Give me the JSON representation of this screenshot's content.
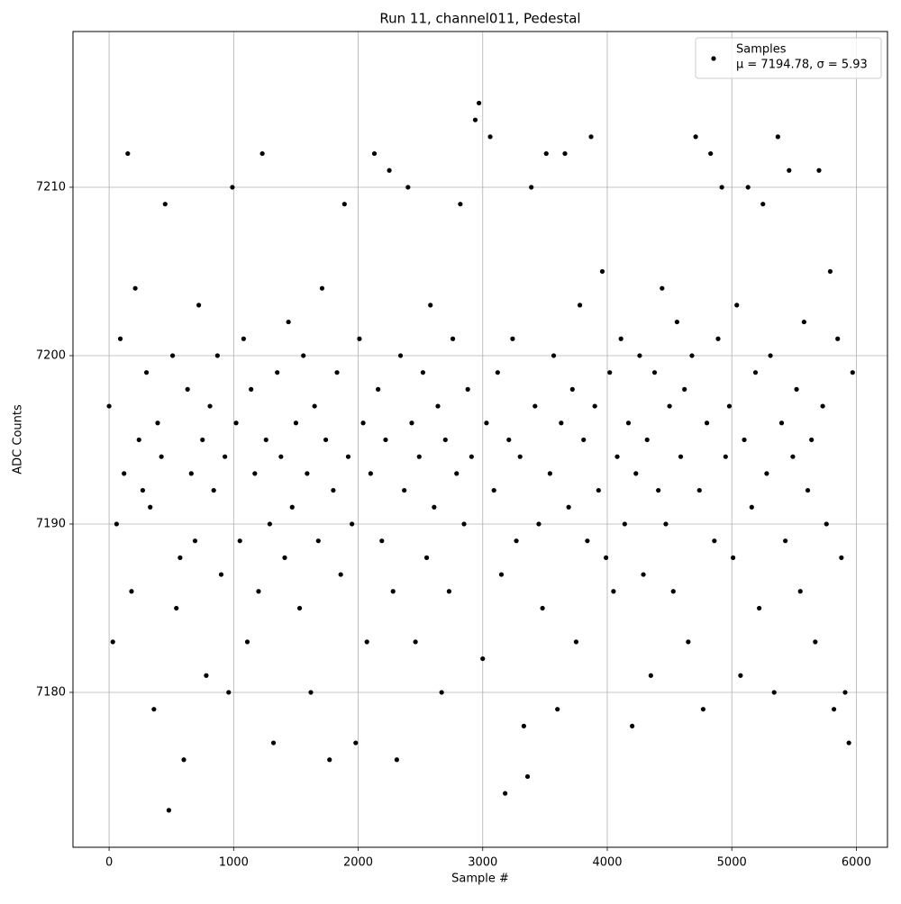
{
  "chart_data": {
    "type": "scatter",
    "title": "Run 11, channel011, Pedestal",
    "x_label": "Sample #",
    "y_label": "ADC Counts",
    "xlim": [
      -290,
      6250
    ],
    "ylim": [
      7170.8,
      7219.25
    ],
    "xticks": [
      0,
      1000,
      2000,
      3000,
      4000,
      5000,
      6000
    ],
    "yticks": [
      7180,
      7190,
      7200,
      7210
    ],
    "grid": true,
    "legend_position": "upper right",
    "legend_note": "μ = 7194.78, σ = 5.93",
    "series": [
      {
        "name": "Samples",
        "color": "#000000",
        "x": [
          0,
          30,
          60,
          90,
          120,
          150,
          180,
          210,
          240,
          270,
          300,
          330,
          360,
          390,
          420,
          450,
          480,
          510,
          540,
          570,
          600,
          630,
          660,
          690,
          720,
          750,
          780,
          810,
          840,
          870,
          900,
          930,
          960,
          990,
          1020,
          1050,
          1080,
          1110,
          1140,
          1170,
          1200,
          1230,
          1260,
          1290,
          1320,
          1350,
          1380,
          1410,
          1440,
          1470,
          1500,
          1530,
          1560,
          1590,
          1620,
          1650,
          1680,
          1710,
          1740,
          1770,
          1800,
          1830,
          1860,
          1890,
          1920,
          1950,
          1980,
          2010,
          2040,
          2070,
          2100,
          2130,
          2160,
          2190,
          2220,
          2250,
          2280,
          2310,
          2340,
          2370,
          2400,
          2430,
          2460,
          2490,
          2520,
          2550,
          2580,
          2610,
          2640,
          2670,
          2700,
          2730,
          2760,
          2790,
          2820,
          2850,
          2880,
          2910,
          2940,
          2970,
          3000,
          3030,
          3060,
          3090,
          3120,
          3150,
          3180,
          3210,
          3240,
          3270,
          3300,
          3330,
          3360,
          3390,
          3420,
          3450,
          3480,
          3510,
          3540,
          3570,
          3600,
          3630,
          3660,
          3690,
          3720,
          3750,
          3780,
          3810,
          3840,
          3870,
          3900,
          3930,
          3960,
          3990,
          4020,
          4050,
          4080,
          4110,
          4140,
          4170,
          4200,
          4230,
          4260,
          4290,
          4320,
          4350,
          4380,
          4410,
          4440,
          4470,
          4500,
          4530,
          4560,
          4590,
          4620,
          4650,
          4680,
          4710,
          4740,
          4770,
          4800,
          4830,
          4860,
          4890,
          4920,
          4950,
          4980,
          5010,
          5040,
          5070,
          5100,
          5130,
          5160,
          5190,
          5220,
          5250,
          5280,
          5310,
          5340,
          5370,
          5400,
          5430,
          5460,
          5490,
          5520,
          5550,
          5580,
          5610,
          5640,
          5670,
          5700,
          5730,
          5760,
          5790,
          5820,
          5850,
          5880,
          5910,
          5940,
          5970
        ],
        "values": [
          7197,
          7183,
          7190,
          7201,
          7193,
          7212,
          7186,
          7204,
          7195,
          7192,
          7199,
          7191,
          7179,
          7196,
          7194,
          7209,
          7173,
          7200,
          7185,
          7188,
          7176,
          7198,
          7193,
          7189,
          7203,
          7195,
          7181,
          7197,
          7192,
          7200,
          7187,
          7194,
          7180,
          7210,
          7196,
          7189,
          7201,
          7183,
          7198,
          7193,
          7186,
          7212,
          7195,
          7190,
          7177,
          7199,
          7194,
          7188,
          7202,
          7191,
          7196,
          7185,
          7200,
          7193,
          7180,
          7197,
          7189,
          7204,
          7195,
          7176,
          7192,
          7199,
          7187,
          7209,
          7194,
          7190,
          7177,
          7201,
          7196,
          7183,
          7193,
          7212,
          7198,
          7189,
          7195,
          7211,
          7186,
          7176,
          7200,
          7192,
          7210,
          7196,
          7183,
          7194,
          7199,
          7188,
          7203,
          7191,
          7197,
          7180,
          7195,
          7186,
          7201,
          7193,
          7209,
          7190,
          7198,
          7194,
          7214,
          7215,
          7182,
          7196,
          7213,
          7192,
          7199,
          7187,
          7174,
          7195,
          7201,
          7189,
          7194,
          7178,
          7175,
          7210,
          7197,
          7190,
          7185,
          7212,
          7193,
          7200,
          7179,
          7196,
          7212,
          7191,
          7198,
          7183,
          7203,
          7195,
          7189,
          7213,
          7197,
          7192,
          7205,
          7188,
          7199,
          7186,
          7194,
          7201,
          7190,
          7196,
          7178,
          7193,
          7200,
          7187,
          7195,
          7181,
          7199,
          7192,
          7204,
          7190,
          7197,
          7186,
          7202,
          7194,
          7198,
          7183,
          7200,
          7213,
          7192,
          7179,
          7196,
          7212,
          7189,
          7201,
          7210,
          7194,
          7197,
          7188,
          7203,
          7181,
          7195,
          7210,
          7191,
          7199,
          7185,
          7209,
          7193,
          7200,
          7180,
          7213,
          7196,
          7189,
          7211,
          7194,
          7198,
          7186,
          7202,
          7192,
          7195,
          7183,
          7211,
          7197,
          7190,
          7205,
          7179,
          7201,
          7188,
          7180,
          7177,
          7199
        ]
      }
    ]
  }
}
